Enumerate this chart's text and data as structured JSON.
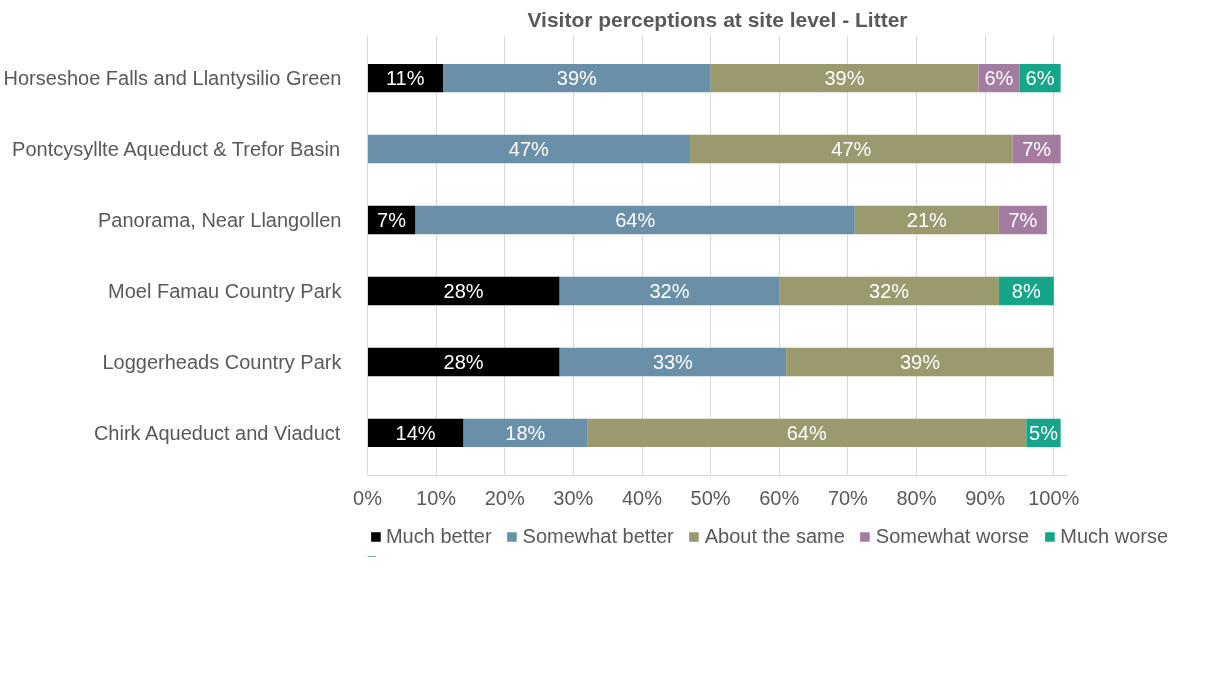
{
  "chart_data": {
    "type": "bar",
    "orientation": "horizontal",
    "stacked": true,
    "title": "Visitor perceptions at site level - Litter",
    "categories": [
      "Horseshoe Falls and Llantysilio Green",
      "Pontcysyllte Aqueduct & Trefor Basin",
      "Panorama, Near Llangollen",
      "Moel Famau Country Park",
      "Loggerheads Country Park",
      "Chirk Aqueduct and Viaduct"
    ],
    "series": [
      {
        "name": "Much better",
        "color": "#000000",
        "values": [
          11,
          null,
          7,
          28,
          28,
          14
        ],
        "value_labels": [
          "11%",
          null,
          "7%",
          "28%",
          "28%",
          "14%"
        ]
      },
      {
        "name": "Somewhat better",
        "color": "#6a8fa8",
        "values": [
          39,
          47,
          64,
          32,
          33,
          18
        ],
        "value_labels": [
          "39%",
          "47%",
          "64%",
          "32%",
          "33%",
          "18%"
        ]
      },
      {
        "name": "About the same",
        "color": "#9b9a6e",
        "values": [
          39,
          47,
          21,
          32,
          39,
          64
        ],
        "value_labels": [
          "39%",
          "47%",
          "21%",
          "32%",
          "39%",
          "64%"
        ]
      },
      {
        "name": "Somewhat worse",
        "color": "#a47ca0",
        "values": [
          6,
          7,
          7,
          null,
          null,
          null
        ],
        "value_labels": [
          "6%",
          "7%",
          "7%",
          null,
          null,
          null
        ]
      },
      {
        "name": "Much worse",
        "color": "#17a589",
        "values": [
          6,
          null,
          null,
          8,
          null,
          5
        ],
        "value_labels": [
          "6%",
          null,
          null,
          "8%",
          null,
          "5%"
        ]
      }
    ],
    "xlim": [
      0,
      102
    ],
    "xticks": [
      {
        "value": 0,
        "label": "0%"
      },
      {
        "value": 10,
        "label": "10%"
      },
      {
        "value": 20,
        "label": "20%"
      },
      {
        "value": 30,
        "label": "30%"
      },
      {
        "value": 40,
        "label": "40%"
      },
      {
        "value": 50,
        "label": "50%"
      },
      {
        "value": 60,
        "label": "60%"
      },
      {
        "value": 70,
        "label": "70%"
      },
      {
        "value": 80,
        "label": "80%"
      },
      {
        "value": 90,
        "label": "90%"
      },
      {
        "value": 100,
        "label": "100%"
      }
    ],
    "grid": "x",
    "legend": "bottom"
  }
}
